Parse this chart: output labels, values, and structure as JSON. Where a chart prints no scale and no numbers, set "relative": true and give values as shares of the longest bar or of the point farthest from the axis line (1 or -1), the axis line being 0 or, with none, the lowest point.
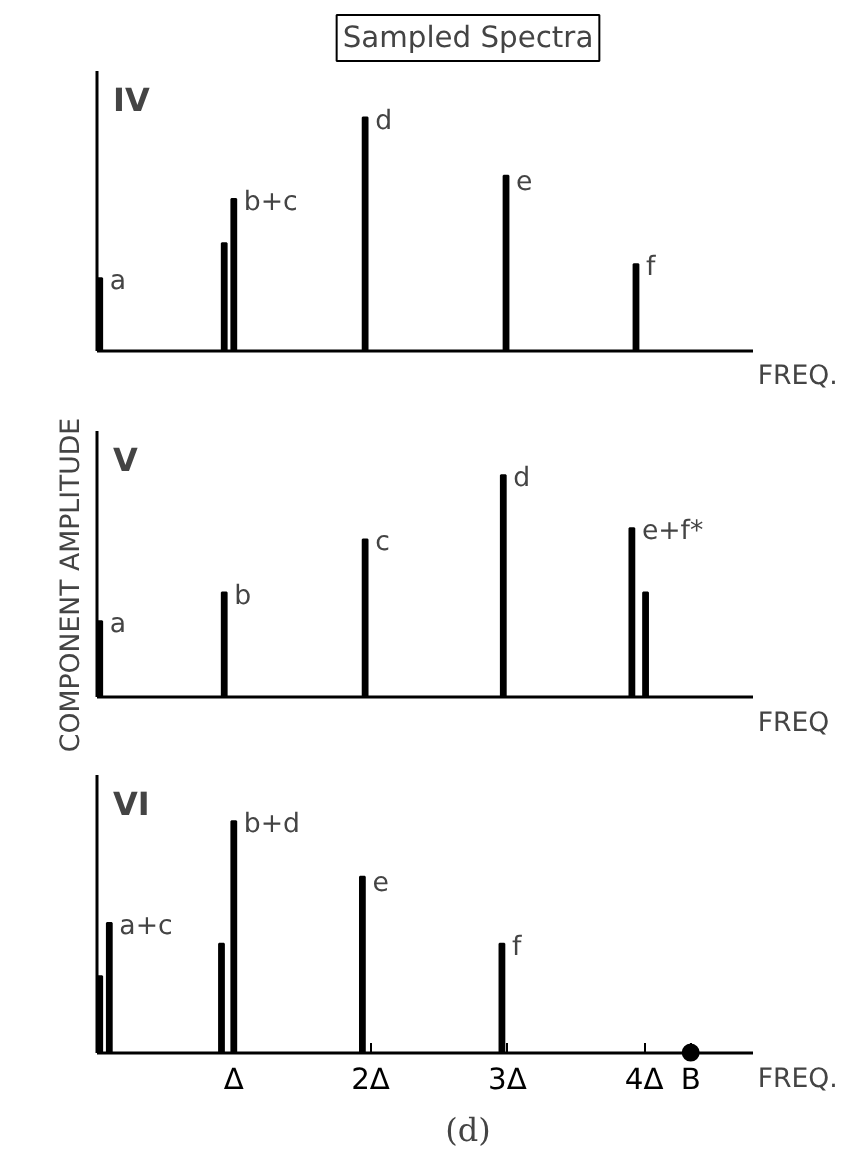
{
  "chart_data": [
    {
      "type": "bar",
      "title": "IV",
      "xlabel": "FREQ.",
      "relative": true,
      "xlim": [
        0,
        4.8
      ],
      "grid": false,
      "annotations": [
        "Sampled Spectra",
        {
          "text": "a",
          "x": 0.02,
          "y": 0.31
        },
        {
          "text": "b+c",
          "x": 1.0,
          "y": 0.65
        },
        {
          "text": "d",
          "x": 1.96,
          "y": 1.0
        },
        {
          "text": "e",
          "x": 2.99,
          "y": 0.75
        },
        {
          "text": "f",
          "x": 3.94,
          "y": 0.37
        }
      ],
      "series": [
        {
          "color": "#000000",
          "x": [
            0.02,
            0.93,
            1.0,
            1.96,
            2.99,
            3.94
          ],
          "values": [
            0.31,
            0.46,
            0.65,
            1.0,
            0.75,
            0.37
          ]
        }
      ]
    },
    {
      "type": "bar",
      "title": "V",
      "xlabel": "FREQ",
      "ylabel": "COMPONENT AMPLITUDE",
      "relative": true,
      "xlim": [
        0,
        4.8
      ],
      "grid": false,
      "annotations": [
        {
          "text": "a",
          "x": 0.02,
          "y": 0.34
        },
        {
          "text": "b",
          "x": 0.93,
          "y": 0.47
        },
        {
          "text": "c",
          "x": 1.96,
          "y": 0.71
        },
        {
          "text": "d",
          "x": 2.97,
          "y": 1.0
        },
        {
          "text": "e+f*",
          "x": 3.91,
          "y": 0.76
        }
      ],
      "series": [
        {
          "color": "#000000",
          "x": [
            0.02,
            0.93,
            1.96,
            2.97,
            3.91,
            4.01
          ],
          "values": [
            0.34,
            0.47,
            0.71,
            1.0,
            0.76,
            0.47
          ]
        }
      ]
    },
    {
      "type": "bar",
      "title": "VI",
      "xlabel": "FREQ.",
      "relative": true,
      "xlim": [
        0,
        4.8
      ],
      "grid": false,
      "xticks": [
        {
          "value": 1,
          "label": "Δ"
        },
        {
          "value": 2,
          "label": "2Δ"
        },
        {
          "value": 3,
          "label": "3Δ"
        },
        {
          "value": 4,
          "label": "4Δ"
        },
        {
          "value": 4.34,
          "label": "B"
        }
      ],
      "annotations": [
        "(d)",
        {
          "text": "a+c",
          "x": 0.09,
          "y": 0.56
        },
        {
          "text": "b+d",
          "x": 1.0,
          "y": 1.0
        },
        {
          "text": "e",
          "x": 1.94,
          "y": 0.76
        },
        {
          "text": "f",
          "x": 2.96,
          "y": 0.47
        }
      ],
      "series": [
        {
          "color": "#000000",
          "x": [
            0.02,
            0.09,
            0.91,
            1.0,
            1.94,
            2.96
          ],
          "values": [
            0.33,
            0.56,
            0.47,
            1.0,
            0.76,
            0.47
          ]
        },
        {
          "type": "scatter",
          "marker": "circle",
          "color": "#000000",
          "x": [
            4.34
          ],
          "values": [
            0
          ]
        }
      ]
    }
  ]
}
